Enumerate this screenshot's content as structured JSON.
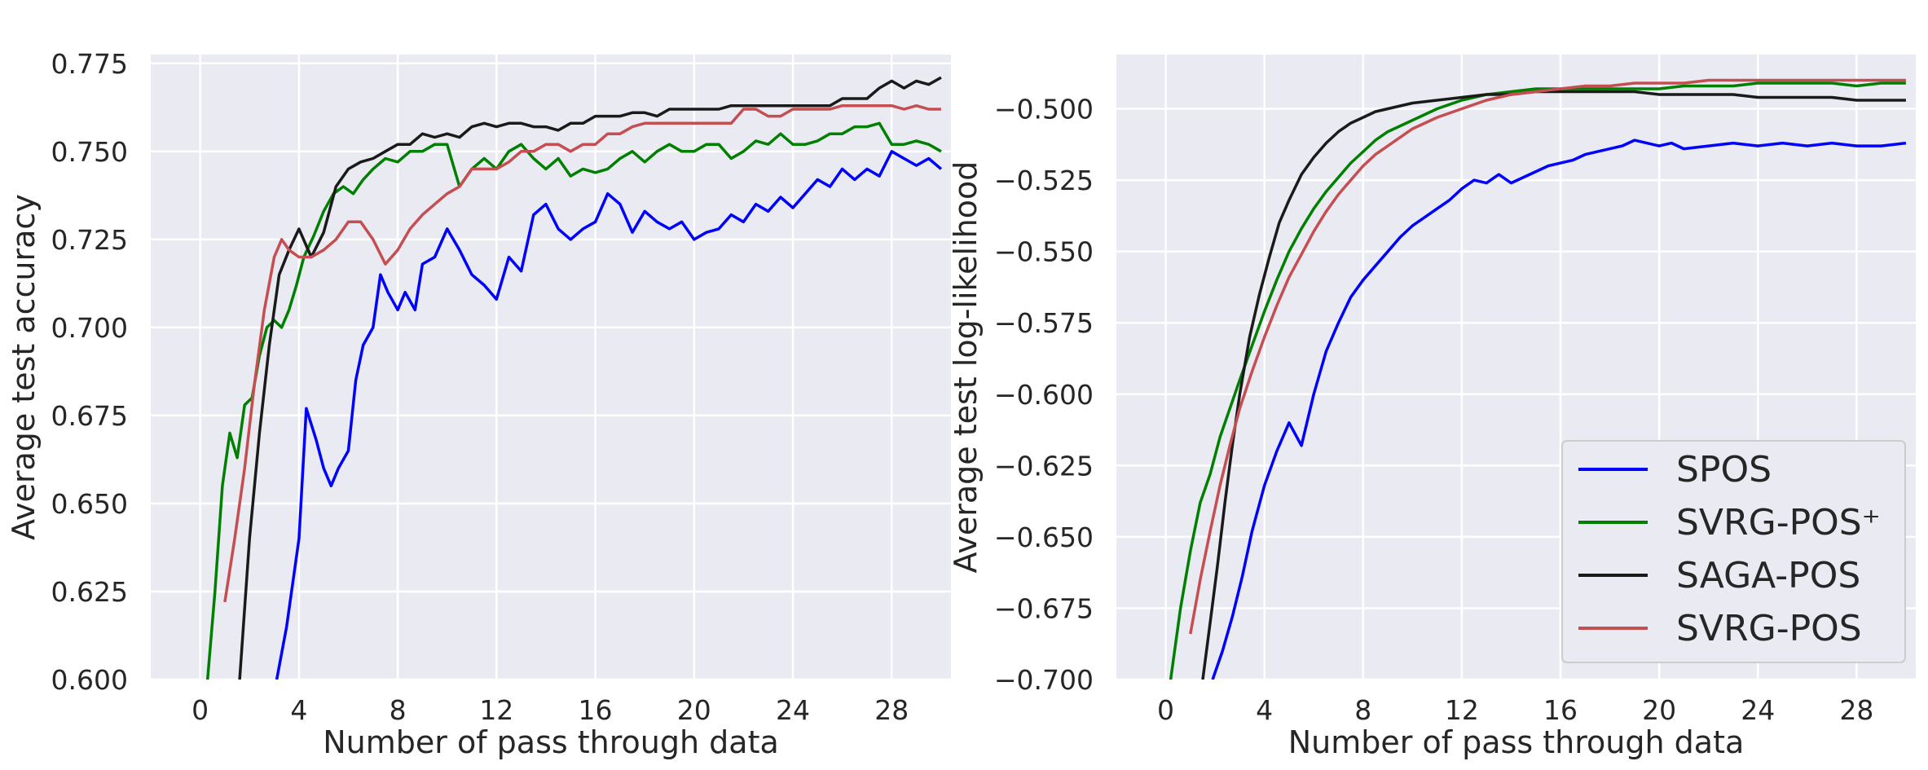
{
  "chart_data": [
    {
      "type": "line",
      "xlabel": "Number of pass through data",
      "ylabel": "Average test accuracy",
      "xlim": [
        -2,
        30.4
      ],
      "ylim": [
        0.6,
        0.7775
      ],
      "xticks": [
        "0",
        "4",
        "8",
        "12",
        "16",
        "20",
        "24",
        "28"
      ],
      "yticks": [
        "0.600",
        "0.625",
        "0.650",
        "0.675",
        "0.700",
        "0.725",
        "0.750",
        "0.775"
      ],
      "grid": true,
      "series": [
        {
          "name": "SPOS",
          "color": "#0000ff",
          "x": [
            3.1,
            3.5,
            4.0,
            4.3,
            4.7,
            5.0,
            5.3,
            5.6,
            6.0,
            6.3,
            6.6,
            7.0,
            7.3,
            7.6,
            8.0,
            8.3,
            8.7,
            9.0,
            9.5,
            10.0,
            10.5,
            11.0,
            11.5,
            12.0,
            12.5,
            13.0,
            13.5,
            14.0,
            14.5,
            15.0,
            15.5,
            16.0,
            16.5,
            17.0,
            17.5,
            18.0,
            18.5,
            19.0,
            19.5,
            20.0,
            20.5,
            21.0,
            21.5,
            22.0,
            22.5,
            23.0,
            23.5,
            24.0,
            24.5,
            25.0,
            25.5,
            26.0,
            26.5,
            27.0,
            27.5,
            28.0,
            28.5,
            29.0,
            29.5,
            30.0
          ],
          "values": [
            0.6,
            0.615,
            0.64,
            0.677,
            0.668,
            0.66,
            0.655,
            0.66,
            0.665,
            0.685,
            0.695,
            0.7,
            0.715,
            0.71,
            0.705,
            0.71,
            0.705,
            0.718,
            0.72,
            0.728,
            0.722,
            0.715,
            0.712,
            0.708,
            0.72,
            0.716,
            0.732,
            0.735,
            0.728,
            0.725,
            0.728,
            0.73,
            0.738,
            0.735,
            0.727,
            0.733,
            0.73,
            0.728,
            0.73,
            0.725,
            0.727,
            0.728,
            0.732,
            0.73,
            0.735,
            0.733,
            0.737,
            0.734,
            0.738,
            0.742,
            0.74,
            0.745,
            0.742,
            0.745,
            0.743,
            0.75,
            0.748,
            0.746,
            0.748,
            0.745
          ]
        },
        {
          "name": "SVRG-POS⁺",
          "color": "#008000",
          "x": [
            0.3,
            0.6,
            0.9,
            1.2,
            1.5,
            1.8,
            2.1,
            2.4,
            2.7,
            3.0,
            3.3,
            3.6,
            3.9,
            4.2,
            4.6,
            5.0,
            5.4,
            5.8,
            6.2,
            6.6,
            7.0,
            7.5,
            8.0,
            8.5,
            9.0,
            9.5,
            10.0,
            10.5,
            11.0,
            11.5,
            12.0,
            12.5,
            13.0,
            13.5,
            14.0,
            14.5,
            15.0,
            15.5,
            16.0,
            16.5,
            17.0,
            17.5,
            18.0,
            18.5,
            19.0,
            19.5,
            20.0,
            20.5,
            21.0,
            21.5,
            22.0,
            22.5,
            23.0,
            23.5,
            24.0,
            24.5,
            25.0,
            25.5,
            26.0,
            26.5,
            27.0,
            27.5,
            28.0,
            28.5,
            29.0,
            29.5,
            30.0
          ],
          "values": [
            0.6,
            0.625,
            0.655,
            0.67,
            0.663,
            0.678,
            0.68,
            0.692,
            0.7,
            0.702,
            0.7,
            0.705,
            0.712,
            0.72,
            0.726,
            0.733,
            0.738,
            0.74,
            0.738,
            0.742,
            0.745,
            0.748,
            0.747,
            0.75,
            0.75,
            0.752,
            0.752,
            0.74,
            0.745,
            0.748,
            0.745,
            0.75,
            0.752,
            0.748,
            0.745,
            0.748,
            0.743,
            0.745,
            0.744,
            0.745,
            0.748,
            0.75,
            0.747,
            0.75,
            0.752,
            0.75,
            0.75,
            0.752,
            0.752,
            0.748,
            0.75,
            0.753,
            0.752,
            0.755,
            0.752,
            0.752,
            0.753,
            0.755,
            0.755,
            0.757,
            0.757,
            0.758,
            0.752,
            0.752,
            0.753,
            0.752,
            0.75
          ]
        },
        {
          "name": "SAGA-POS",
          "color": "#1a1a1a",
          "x": [
            1.6,
            2.0,
            2.4,
            2.8,
            3.2,
            3.6,
            4.0,
            4.5,
            5.0,
            5.5,
            6.0,
            6.5,
            7.0,
            7.5,
            8.0,
            8.5,
            9.0,
            9.5,
            10.0,
            10.5,
            11.0,
            11.5,
            12.0,
            12.5,
            13.0,
            13.5,
            14.0,
            14.5,
            15.0,
            15.5,
            16.0,
            16.5,
            17.0,
            17.5,
            18.0,
            18.5,
            19.0,
            19.5,
            20.0,
            20.5,
            21.0,
            21.5,
            22.0,
            22.5,
            23.0,
            23.5,
            24.0,
            24.5,
            25.0,
            25.5,
            26.0,
            26.5,
            27.0,
            27.5,
            28.0,
            28.5,
            29.0,
            29.5,
            30.0
          ],
          "values": [
            0.6,
            0.64,
            0.67,
            0.695,
            0.715,
            0.722,
            0.728,
            0.72,
            0.727,
            0.74,
            0.745,
            0.747,
            0.748,
            0.75,
            0.752,
            0.752,
            0.755,
            0.754,
            0.755,
            0.754,
            0.757,
            0.758,
            0.757,
            0.758,
            0.758,
            0.757,
            0.757,
            0.756,
            0.758,
            0.758,
            0.76,
            0.76,
            0.76,
            0.761,
            0.761,
            0.76,
            0.762,
            0.762,
            0.762,
            0.762,
            0.762,
            0.763,
            0.763,
            0.763,
            0.763,
            0.763,
            0.763,
            0.763,
            0.763,
            0.763,
            0.765,
            0.765,
            0.765,
            0.768,
            0.77,
            0.768,
            0.77,
            0.769,
            0.771
          ]
        },
        {
          "name": "SVRG-POS",
          "color": "#c44e52",
          "x": [
            1.0,
            1.4,
            1.8,
            2.2,
            2.6,
            3.0,
            3.3,
            3.6,
            4.0,
            4.5,
            5.0,
            5.5,
            6.0,
            6.5,
            7.0,
            7.5,
            8.0,
            8.5,
            9.0,
            9.5,
            10.0,
            10.5,
            11.0,
            11.5,
            12.0,
            12.5,
            13.0,
            13.5,
            14.0,
            14.5,
            15.0,
            15.5,
            16.0,
            16.5,
            17.0,
            17.5,
            18.0,
            18.5,
            19.0,
            19.5,
            20.0,
            20.5,
            21.0,
            21.5,
            22.0,
            22.5,
            23.0,
            23.5,
            24.0,
            24.5,
            25.0,
            25.5,
            26.0,
            26.5,
            27.0,
            27.5,
            28.0,
            28.5,
            29.0,
            29.5,
            30.0
          ],
          "values": [
            0.622,
            0.64,
            0.66,
            0.684,
            0.705,
            0.72,
            0.725,
            0.722,
            0.72,
            0.72,
            0.722,
            0.725,
            0.73,
            0.73,
            0.725,
            0.718,
            0.722,
            0.728,
            0.732,
            0.735,
            0.738,
            0.74,
            0.745,
            0.745,
            0.745,
            0.747,
            0.75,
            0.75,
            0.752,
            0.752,
            0.75,
            0.752,
            0.752,
            0.755,
            0.755,
            0.757,
            0.758,
            0.758,
            0.758,
            0.758,
            0.758,
            0.758,
            0.758,
            0.758,
            0.762,
            0.762,
            0.76,
            0.76,
            0.762,
            0.762,
            0.762,
            0.762,
            0.763,
            0.763,
            0.763,
            0.763,
            0.763,
            0.762,
            0.763,
            0.762,
            0.762
          ]
        }
      ]
    },
    {
      "type": "line",
      "xlabel": "Number of pass through data",
      "ylabel": "Average test log-likelihood",
      "xlim": [
        -2,
        30.4
      ],
      "ylim": [
        -0.7,
        -0.481
      ],
      "xticks": [
        "0",
        "4",
        "8",
        "12",
        "16",
        "20",
        "24",
        "28"
      ],
      "yticks": [
        "−0.500",
        "−0.525",
        "−0.550",
        "−0.575",
        "−0.600",
        "−0.625",
        "−0.650",
        "−0.675",
        "−0.700"
      ],
      "grid": true,
      "legend": {
        "position": "lower right",
        "entries": [
          "SPOS",
          "SVRG-POS⁺",
          "SAGA-POS",
          "SVRG-POS"
        ]
      },
      "series": [
        {
          "name": "SPOS",
          "color": "#0000ff",
          "x": [
            1.9,
            2.3,
            2.7,
            3.1,
            3.5,
            4.0,
            4.5,
            5.0,
            5.5,
            6.0,
            6.5,
            7.0,
            7.5,
            8.0,
            8.5,
            9.0,
            9.5,
            10.0,
            10.5,
            11.0,
            11.5,
            12.0,
            12.5,
            13.0,
            13.5,
            14.0,
            14.5,
            15.0,
            15.5,
            16.0,
            16.5,
            17.0,
            17.5,
            18.0,
            18.5,
            19.0,
            19.5,
            20.0,
            20.5,
            21.0,
            22.0,
            23.0,
            24.0,
            25.0,
            26.0,
            27.0,
            28.0,
            29.0,
            30.0
          ],
          "values": [
            -0.7,
            -0.69,
            -0.678,
            -0.664,
            -0.648,
            -0.632,
            -0.62,
            -0.61,
            -0.618,
            -0.6,
            -0.585,
            -0.575,
            -0.566,
            -0.56,
            -0.555,
            -0.55,
            -0.545,
            -0.541,
            -0.538,
            -0.535,
            -0.532,
            -0.528,
            -0.525,
            -0.526,
            -0.523,
            -0.526,
            -0.524,
            -0.522,
            -0.52,
            -0.519,
            -0.518,
            -0.516,
            -0.515,
            -0.514,
            -0.513,
            -0.511,
            -0.512,
            -0.513,
            -0.512,
            -0.514,
            -0.513,
            -0.512,
            -0.513,
            -0.512,
            -0.513,
            -0.512,
            -0.513,
            -0.513,
            -0.512
          ]
        },
        {
          "name": "SVRG-POS⁺",
          "color": "#008000",
          "x": [
            0.2,
            0.6,
            1.0,
            1.4,
            1.8,
            2.2,
            2.6,
            3.0,
            3.5,
            4.0,
            4.5,
            5.0,
            5.5,
            6.0,
            6.5,
            7.0,
            7.5,
            8.0,
            8.5,
            9.0,
            9.5,
            10.0,
            11.0,
            12.0,
            13.0,
            14.0,
            15.0,
            16.0,
            17.0,
            18.0,
            19.0,
            20.0,
            21.0,
            22.0,
            23.0,
            24.0,
            25.0,
            26.0,
            27.0,
            28.0,
            29.0,
            30.0
          ],
          "values": [
            -0.7,
            -0.675,
            -0.655,
            -0.638,
            -0.628,
            -0.615,
            -0.605,
            -0.595,
            -0.583,
            -0.571,
            -0.56,
            -0.55,
            -0.542,
            -0.535,
            -0.529,
            -0.524,
            -0.519,
            -0.515,
            -0.511,
            -0.508,
            -0.506,
            -0.504,
            -0.5,
            -0.497,
            -0.495,
            -0.494,
            -0.493,
            -0.493,
            -0.493,
            -0.493,
            -0.493,
            -0.493,
            -0.492,
            -0.492,
            -0.492,
            -0.491,
            -0.491,
            -0.491,
            -0.491,
            -0.492,
            -0.491,
            -0.491
          ]
        },
        {
          "name": "SAGA-POS",
          "color": "#1a1a1a",
          "x": [
            1.5,
            1.8,
            2.1,
            2.4,
            2.7,
            3.0,
            3.4,
            3.8,
            4.2,
            4.6,
            5.0,
            5.5,
            6.0,
            6.5,
            7.0,
            7.5,
            8.0,
            8.5,
            9.0,
            9.5,
            10.0,
            11.0,
            12.0,
            13.0,
            14.0,
            15.0,
            16.0,
            17.0,
            18.0,
            19.0,
            20.0,
            21.0,
            22.0,
            23.0,
            24.0,
            25.0,
            26.0,
            27.0,
            28.0,
            29.0,
            30.0
          ],
          "values": [
            -0.7,
            -0.68,
            -0.66,
            -0.638,
            -0.618,
            -0.6,
            -0.58,
            -0.565,
            -0.552,
            -0.54,
            -0.532,
            -0.523,
            -0.517,
            -0.512,
            -0.508,
            -0.505,
            -0.503,
            -0.501,
            -0.5,
            -0.499,
            -0.498,
            -0.497,
            -0.496,
            -0.495,
            -0.495,
            -0.494,
            -0.494,
            -0.494,
            -0.494,
            -0.494,
            -0.495,
            -0.495,
            -0.495,
            -0.495,
            -0.496,
            -0.496,
            -0.496,
            -0.496,
            -0.497,
            -0.497,
            -0.497
          ]
        },
        {
          "name": "SVRG-POS",
          "color": "#c44e52",
          "x": [
            1.0,
            1.4,
            1.8,
            2.2,
            2.6,
            3.0,
            3.5,
            4.0,
            4.5,
            5.0,
            5.5,
            6.0,
            6.5,
            7.0,
            7.5,
            8.0,
            8.5,
            9.0,
            9.5,
            10.0,
            11.0,
            12.0,
            13.0,
            14.0,
            15.0,
            16.0,
            17.0,
            18.0,
            19.0,
            20.0,
            21.0,
            22.0,
            23.0,
            24.0,
            25.0,
            26.0,
            27.0,
            28.0,
            29.0,
            30.0
          ],
          "values": [
            -0.684,
            -0.665,
            -0.648,
            -0.632,
            -0.618,
            -0.605,
            -0.592,
            -0.58,
            -0.569,
            -0.559,
            -0.551,
            -0.543,
            -0.536,
            -0.53,
            -0.525,
            -0.52,
            -0.516,
            -0.513,
            -0.51,
            -0.507,
            -0.503,
            -0.5,
            -0.497,
            -0.495,
            -0.494,
            -0.493,
            -0.492,
            -0.492,
            -0.491,
            -0.491,
            -0.491,
            -0.49,
            -0.49,
            -0.49,
            -0.49,
            -0.49,
            -0.49,
            -0.49,
            -0.49,
            -0.49
          ]
        }
      ]
    }
  ]
}
